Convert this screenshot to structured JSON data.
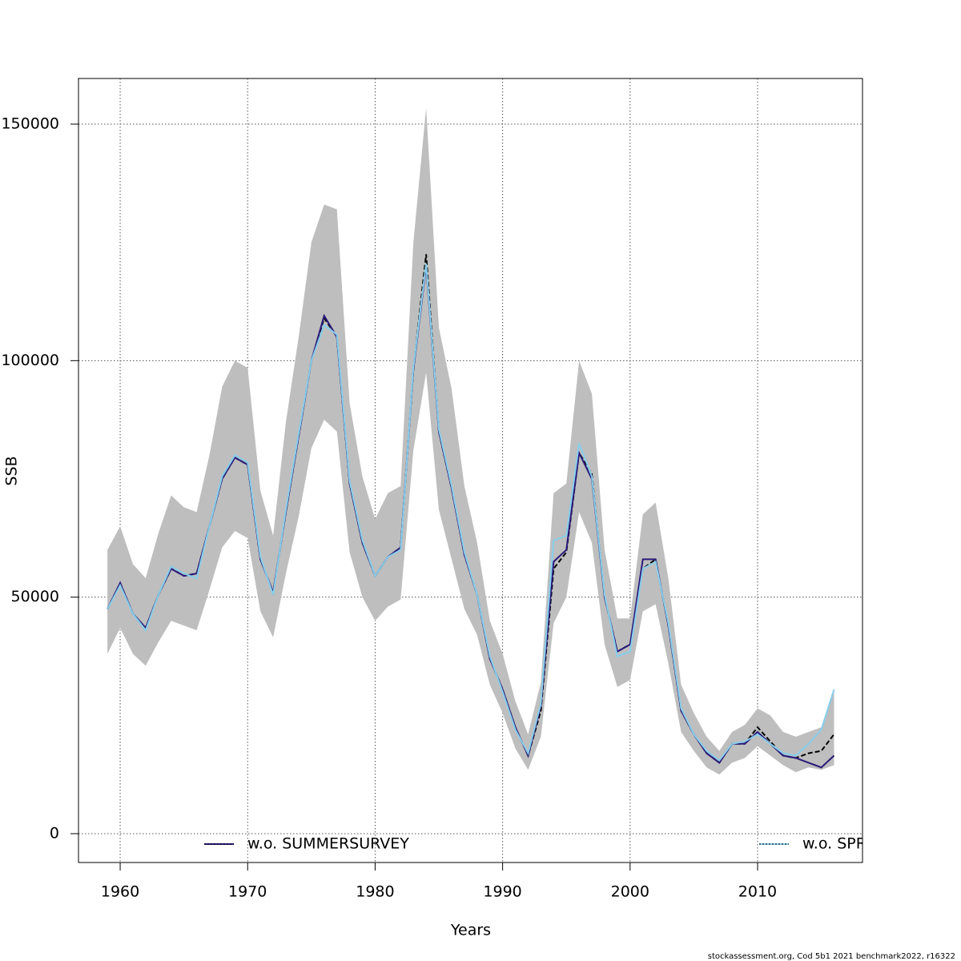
{
  "chart_data": {
    "type": "line",
    "xlabel": "Years",
    "ylabel": "SSB",
    "footnote": "stockassessment.org, Cod 5b1 2021 benchmark2022, r16322",
    "x": [
      1959,
      1960,
      1961,
      1962,
      1963,
      1964,
      1965,
      1966,
      1967,
      1968,
      1969,
      1970,
      1971,
      1972,
      1973,
      1974,
      1975,
      1976,
      1977,
      1978,
      1979,
      1980,
      1981,
      1982,
      1983,
      1984,
      1985,
      1986,
      1987,
      1988,
      1989,
      1990,
      1991,
      1992,
      1993,
      1994,
      1995,
      1996,
      1997,
      1998,
      1999,
      2000,
      2001,
      2002,
      2003,
      2004,
      2005,
      2006,
      2007,
      2008,
      2009,
      2010,
      2011,
      2012,
      2013,
      2014,
      2015,
      2016
    ],
    "band": {
      "color": "#bebebe",
      "upper": [
        60000,
        65000,
        57000,
        54000,
        63500,
        71500,
        69000,
        68000,
        80000,
        94500,
        100000,
        98500,
        72500,
        63000,
        87000,
        105000,
        125000,
        133000,
        132000,
        91000,
        75500,
        66500,
        72000,
        73500,
        125000,
        153500,
        107000,
        94000,
        73500,
        61500,
        45000,
        38000,
        28000,
        21000,
        32000,
        72000,
        74000,
        100000,
        93000,
        60000,
        45500,
        45500,
        67500,
        70000,
        54000,
        31500,
        25500,
        20500,
        17500,
        21500,
        23000,
        26500,
        25000,
        21500,
        20500,
        21500,
        22500,
        30500
      ],
      "lower": [
        38000,
        43500,
        38000,
        35500,
        40500,
        45000,
        44000,
        43000,
        51500,
        60500,
        64000,
        62500,
        47000,
        41500,
        55000,
        67000,
        81500,
        87500,
        85000,
        59500,
        50000,
        45000,
        48000,
        49500,
        81000,
        97500,
        68500,
        58000,
        47500,
        42000,
        31500,
        25500,
        18000,
        13500,
        20500,
        44500,
        50000,
        68000,
        61500,
        40000,
        31000,
        32500,
        47000,
        48500,
        36000,
        21500,
        17500,
        14000,
        12500,
        15000,
        16000,
        18500,
        16500,
        14500,
        13000,
        14000,
        13500,
        14500
      ]
    },
    "series": [
      {
        "color": "#000000",
        "dashed": true,
        "values": [
          47500,
          53000,
          46500,
          43500,
          50500,
          56000,
          54500,
          55000,
          65000,
          75000,
          79500,
          78000,
          58000,
          51000,
          68000,
          84000,
          100000,
          109000,
          105000,
          74000,
          61500,
          54500,
          58500,
          60500,
          98000,
          122500,
          85000,
          73000,
          59000,
          50500,
          37000,
          30500,
          22500,
          16500,
          26000,
          56000,
          59500,
          80500,
          76000,
          50000,
          38500,
          40000,
          56000,
          58000,
          44000,
          26000,
          21000,
          17000,
          15000,
          19000,
          19000,
          22500,
          19500,
          16500,
          16000,
          17000,
          17500,
          21000
        ]
      },
      {
        "name": "w.o. SUMMERSURVEY",
        "color": "#2a1a7a",
        "values": [
          47500,
          53000,
          46500,
          43500,
          50500,
          56000,
          54500,
          55000,
          65000,
          75000,
          79500,
          78000,
          58000,
          51000,
          68000,
          84000,
          100000,
          109500,
          105000,
          74000,
          61500,
          54500,
          58500,
          60500,
          98000,
          120000,
          85000,
          73000,
          59000,
          50500,
          37000,
          30500,
          22500,
          16500,
          27000,
          57500,
          60000,
          80500,
          75000,
          50000,
          38500,
          40000,
          58000,
          58000,
          44000,
          26000,
          21000,
          17000,
          15000,
          19000,
          19000,
          21500,
          19000,
          16500,
          16000,
          15000,
          14000,
          16500
        ]
      },
      {
        "name": "w.o. SPRINGSURVEY",
        "color": "#87ceeb",
        "values": [
          47500,
          52500,
          46500,
          43000,
          50500,
          56500,
          55000,
          54000,
          65000,
          75500,
          80000,
          78500,
          58500,
          50500,
          68500,
          84500,
          100000,
          107500,
          105500,
          74500,
          62000,
          54500,
          58500,
          60000,
          98500,
          120500,
          85500,
          73500,
          59500,
          50500,
          37500,
          30000,
          22000,
          17000,
          27500,
          62000,
          63000,
          82500,
          75500,
          50500,
          37500,
          38500,
          56000,
          57500,
          44500,
          26500,
          21000,
          17500,
          15500,
          19000,
          19500,
          21000,
          19000,
          17000,
          16500,
          19000,
          22000,
          30500
        ]
      }
    ],
    "xlim": [
      1956.73,
      2018.23
    ],
    "ylim": [
      -6095,
      159650
    ],
    "xticks": [
      1960,
      1970,
      1980,
      1990,
      2000,
      2010
    ],
    "yticks": [
      0,
      50000,
      100000,
      150000
    ],
    "grid": true,
    "legend": "bottom"
  }
}
